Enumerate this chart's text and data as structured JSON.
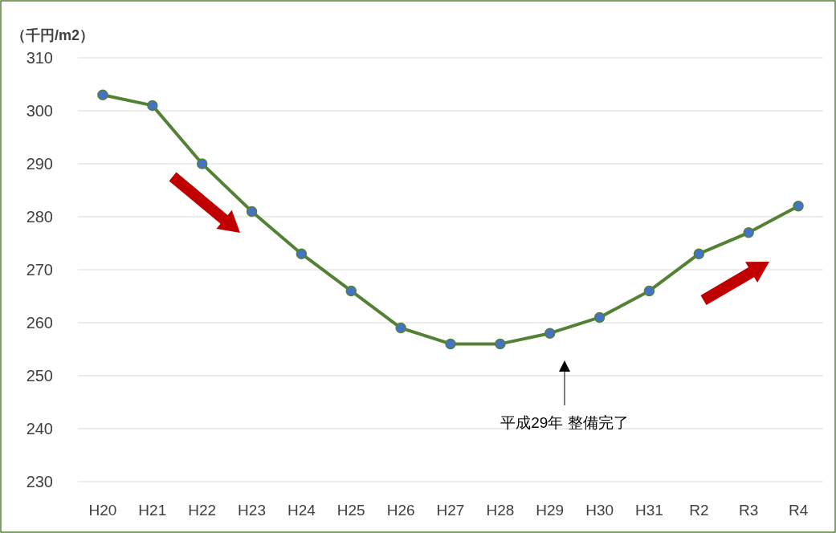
{
  "chart_data": {
    "type": "line",
    "ylabel": "（千円/m2）",
    "categories": [
      "H20",
      "H21",
      "H22",
      "H23",
      "H24",
      "H25",
      "H26",
      "H27",
      "H28",
      "H29",
      "H30",
      "H31",
      "R2",
      "R3",
      "R4"
    ],
    "series": [
      {
        "color": "#548235",
        "colors": [
          "#4472c4",
          "#4472c4",
          "#4472c4",
          "#4472c4",
          "#4472c4",
          "#4472c4",
          "#4472c4",
          "#4472c4",
          "#4472c4",
          "#4472c4",
          "#4472c4",
          "#4472c4",
          "#4472c4",
          "#4472c4",
          "#4472c4"
        ],
        "values": [
          303,
          301,
          290,
          281,
          273,
          266,
          259,
          256,
          256,
          258,
          261,
          266,
          273,
          277,
          282
        ]
      }
    ],
    "ylim": [
      230,
      310
    ],
    "yticks": [
      230,
      240,
      250,
      260,
      270,
      280,
      290,
      300,
      310
    ],
    "grid": "y",
    "marker": "circle",
    "line_style": "solid",
    "annotations": [
      "平成29年 整備完了"
    ]
  }
}
